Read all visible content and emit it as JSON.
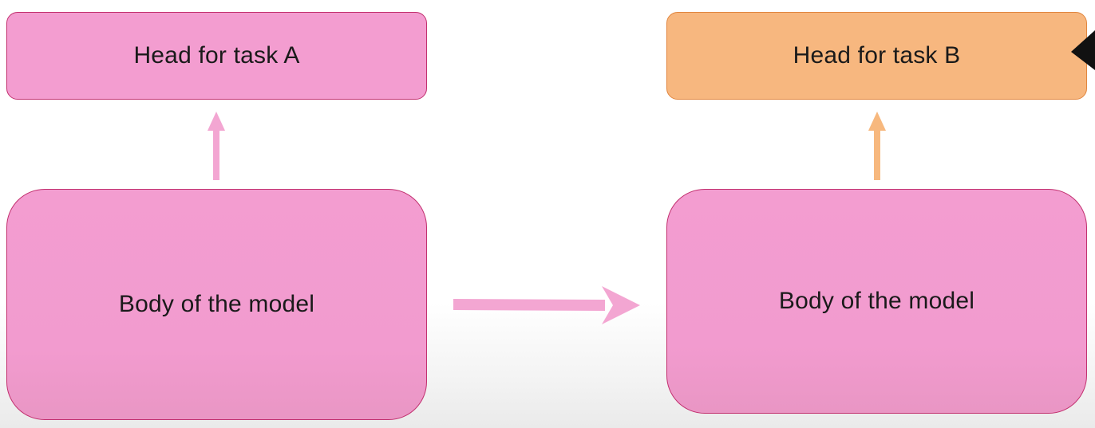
{
  "diagram": {
    "left": {
      "head_label": "Head for task A",
      "body_label": "Body of the model"
    },
    "right": {
      "head_label": "Head for task B",
      "body_label": "Body of the model"
    }
  },
  "colors": {
    "pink_fill": "#f39dd0",
    "pink_border": "#c2306f",
    "orange_fill": "#f7b77f",
    "orange_border": "#e1863f",
    "pink_arrow": "#f3a6d2",
    "orange_arrow": "#f7b87e"
  }
}
